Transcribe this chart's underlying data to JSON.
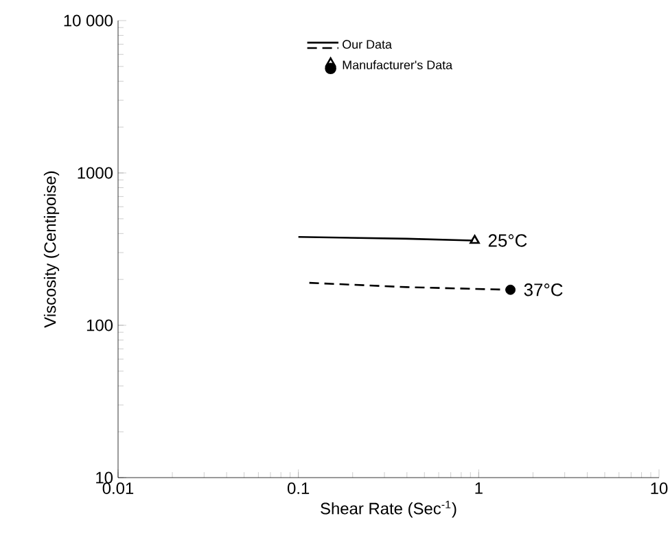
{
  "chart_data": {
    "type": "line",
    "xlabel": "Shear Rate (Sec$^{-1}$)",
    "ylabel": "Viscosity (Centipoise)",
    "log": "xy",
    "xlim": [
      0.01,
      10
    ],
    "ylim": [
      10,
      10000
    ],
    "xticks": [
      0.01,
      0.1,
      1,
      10
    ],
    "yticks": [
      10,
      100,
      1000,
      {
        "value": 10000,
        "label": "10 000"
      }
    ],
    "legend": "top",
    "series": [
      {
        "name": "Our Data",
        "line_style": "solid",
        "color": "#000000",
        "x": [
          0.1,
          0.4,
          0.93
        ],
        "values": [
          380,
          370,
          360
        ]
      },
      {
        "line_style": "dashed",
        "color": "#000000",
        "x": [
          0.115,
          0.4,
          1.5
        ],
        "values": [
          190,
          178,
          171
        ]
      },
      {
        "name": "Manufacturer's Data",
        "type": "scatter",
        "marker": "triangle",
        "color": "#000000",
        "x": [
          0.95
        ],
        "values": [
          360
        ]
      },
      {
        "type": "scatter",
        "marker": "circle",
        "color": "#000000",
        "x": [
          1.5
        ],
        "values": [
          171
        ]
      }
    ],
    "annotations": [
      {
        "text": "25°C",
        "x": 0.95,
        "y": 360
      },
      {
        "text": "37°C",
        "x": 1.5,
        "y": 171
      }
    ]
  }
}
